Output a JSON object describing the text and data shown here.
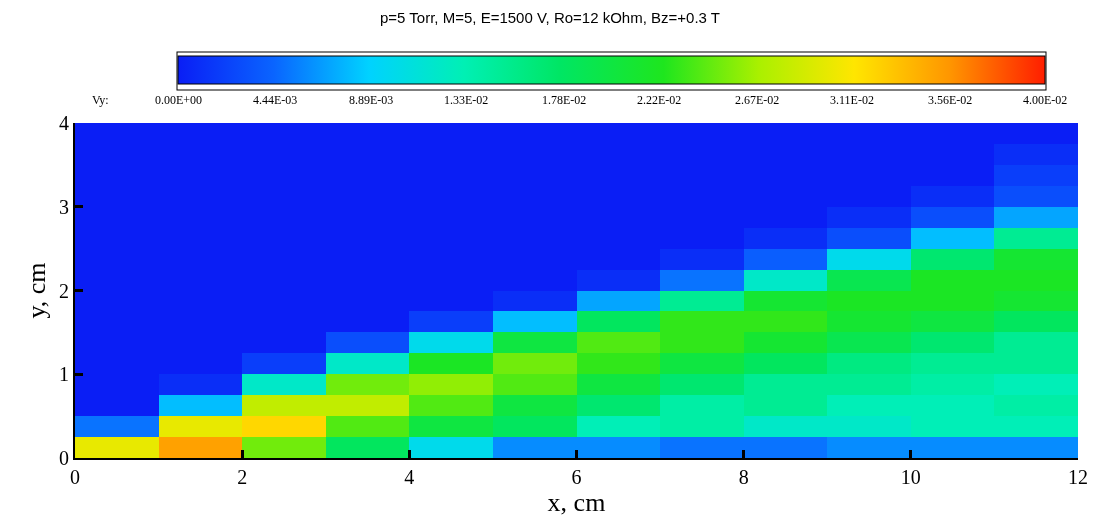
{
  "chart_data": {
    "type": "heatmap",
    "title": "p=5 Torr, M=5, E=1500 V, Ro=12 kOhm, Bz=+0.3 T",
    "xlabel": "x, cm",
    "ylabel": "y, cm",
    "clabel": "Vy:",
    "x": [
      0.5,
      1.5,
      2.5,
      3.5,
      4.5,
      5.5,
      6.5,
      7.5,
      8.5,
      9.5,
      10.5,
      11.5
    ],
    "y": [
      3.875,
      3.625,
      3.375,
      3.125,
      2.875,
      2.625,
      2.375,
      2.125,
      1.875,
      1.625,
      1.375,
      1.125,
      0.875,
      0.625,
      0.375,
      0.125
    ],
    "cells": [
      [
        0,
        0,
        0,
        0,
        0,
        0,
        0,
        0,
        0,
        0,
        0,
        0
      ],
      [
        0,
        0,
        0,
        0,
        0,
        0,
        0,
        0,
        0,
        0,
        0,
        0.001
      ],
      [
        0,
        0,
        0,
        0,
        0,
        0,
        0,
        0,
        0,
        0,
        0,
        0.002
      ],
      [
        0,
        0,
        0,
        0,
        0,
        0,
        0,
        0,
        0,
        0,
        0.001,
        0.003
      ],
      [
        0,
        0,
        0,
        0,
        0,
        0,
        0,
        0,
        0,
        0.001,
        0.003,
        0.007
      ],
      [
        0,
        0,
        0,
        0,
        0,
        0,
        0,
        0,
        0.001,
        0.003,
        0.008,
        0.015
      ],
      [
        0,
        0,
        0,
        0,
        0,
        0,
        0,
        0.001,
        0.004,
        0.01,
        0.017,
        0.021
      ],
      [
        0,
        0,
        0,
        0,
        0,
        0,
        0.001,
        0.005,
        0.012,
        0.019,
        0.022,
        0.022
      ],
      [
        0,
        0,
        0,
        0,
        0,
        0.001,
        0.007,
        0.015,
        0.021,
        0.022,
        0.022,
        0.021
      ],
      [
        0,
        0,
        0,
        0,
        0.002,
        0.008,
        0.018,
        0.023,
        0.023,
        0.021,
        0.02,
        0.018
      ],
      [
        0,
        0,
        0,
        0.003,
        0.01,
        0.02,
        0.024,
        0.023,
        0.021,
        0.019,
        0.017,
        0.015
      ],
      [
        0,
        0,
        0.002,
        0.012,
        0.022,
        0.025,
        0.023,
        0.02,
        0.018,
        0.016,
        0.015,
        0.015
      ],
      [
        0,
        0.001,
        0.012,
        0.025,
        0.026,
        0.024,
        0.02,
        0.017,
        0.015,
        0.015,
        0.014,
        0.013
      ],
      [
        0,
        0.008,
        0.028,
        0.028,
        0.024,
        0.02,
        0.017,
        0.014,
        0.015,
        0.013,
        0.013,
        0.014
      ],
      [
        0.005,
        0.03,
        0.032,
        0.024,
        0.02,
        0.018,
        0.013,
        0.014,
        0.012,
        0.012,
        0.013,
        0.013
      ],
      [
        0.03,
        0.035,
        0.025,
        0.018,
        0.01,
        0.006,
        0.006,
        0.005,
        0.005,
        0.006,
        0.006,
        0.006
      ]
    ],
    "clim": [
      0,
      0.04
    ],
    "cticks": [
      {
        "value": 0,
        "label": "0.00E+00"
      },
      {
        "value": 0.00444,
        "label": "4.44E-03"
      },
      {
        "value": 0.00889,
        "label": "8.89E-03"
      },
      {
        "value": 0.0133,
        "label": "1.33E-02"
      },
      {
        "value": 0.0178,
        "label": "1.78E-02"
      },
      {
        "value": 0.0222,
        "label": "2.22E-02"
      },
      {
        "value": 0.0267,
        "label": "2.67E-02"
      },
      {
        "value": 0.0311,
        "label": "3.11E-02"
      },
      {
        "value": 0.0356,
        "label": "3.56E-02"
      },
      {
        "value": 0.04,
        "label": "4.00E-02"
      }
    ],
    "xlim": [
      0,
      12
    ],
    "xticks": [
      0,
      2,
      4,
      6,
      8,
      10,
      12
    ],
    "ylim": [
      0,
      4
    ],
    "yticks": [
      0,
      1,
      2,
      3,
      4
    ]
  }
}
